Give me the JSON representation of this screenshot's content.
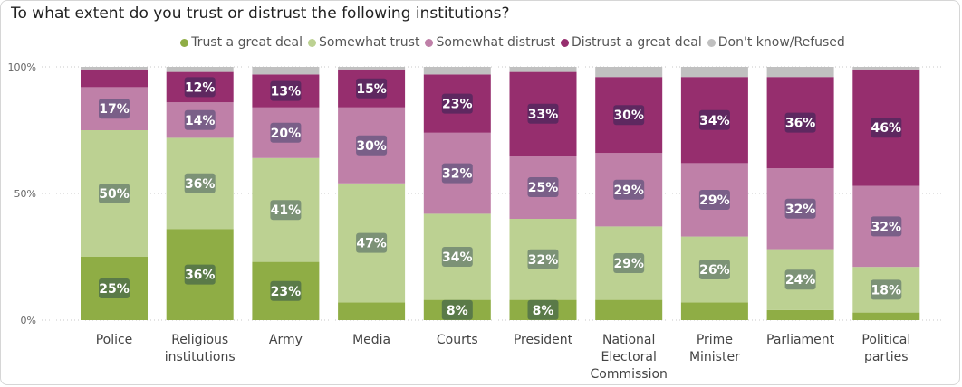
{
  "chart_data": {
    "type": "bar",
    "stacked": true,
    "title": "To what extent do you trust or distrust the following institutions?",
    "xlabel": "",
    "ylabel": "",
    "ylim": [
      0,
      100
    ],
    "yticks": [
      "0%",
      "50%",
      "100%"
    ],
    "grid": true,
    "legend_position": "top",
    "categories": [
      [
        "Police"
      ],
      [
        "Religious",
        "institutions"
      ],
      [
        "Army"
      ],
      [
        "Media"
      ],
      [
        "Courts"
      ],
      [
        "President"
      ],
      [
        "National",
        "Electoral",
        "Commission"
      ],
      [
        "Prime",
        "Minister"
      ],
      [
        "Parliament"
      ],
      [
        "Political",
        "parties"
      ]
    ],
    "series": [
      {
        "name": "Trust a great deal",
        "color": "#8fad45",
        "label_bg": "#5a7a48",
        "values": [
          25,
          36,
          23,
          7,
          8,
          8,
          8,
          7,
          4,
          3
        ],
        "labels": [
          "25%",
          "36%",
          "23%",
          "",
          "8%",
          "8%",
          "",
          "",
          "",
          ""
        ]
      },
      {
        "name": "Somewhat trust",
        "color": "#bcd192",
        "label_bg": "#7c9276",
        "values": [
          50,
          36,
          41,
          47,
          34,
          32,
          29,
          26,
          24,
          18
        ],
        "labels": [
          "50%",
          "36%",
          "41%",
          "47%",
          "34%",
          "32%",
          "29%",
          "26%",
          "24%",
          "18%"
        ]
      },
      {
        "name": "Somewhat distrust",
        "color": "#bf80a8",
        "label_bg": "#7a5f88",
        "values": [
          17,
          14,
          20,
          30,
          32,
          25,
          29,
          29,
          32,
          32
        ],
        "labels": [
          "17%",
          "14%",
          "20%",
          "30%",
          "32%",
          "25%",
          "29%",
          "29%",
          "32%",
          "32%"
        ]
      },
      {
        "name": "Distrust a great deal",
        "color": "#962e6e",
        "label_bg": "#5e2860",
        "values": [
          7,
          12,
          13,
          15,
          23,
          33,
          30,
          34,
          36,
          46
        ],
        "labels": [
          "",
          "12%",
          "13%",
          "15%",
          "23%",
          "33%",
          "30%",
          "34%",
          "36%",
          "46%"
        ]
      },
      {
        "name": "Don't know/Refused",
        "color": "#c0c0c0",
        "label_bg": "#888888",
        "values": [
          1,
          2,
          3,
          1,
          3,
          2,
          4,
          4,
          4,
          1
        ],
        "labels": [
          "",
          "",
          "",
          "",
          "",
          "",
          "",
          "",
          "",
          ""
        ]
      }
    ]
  }
}
